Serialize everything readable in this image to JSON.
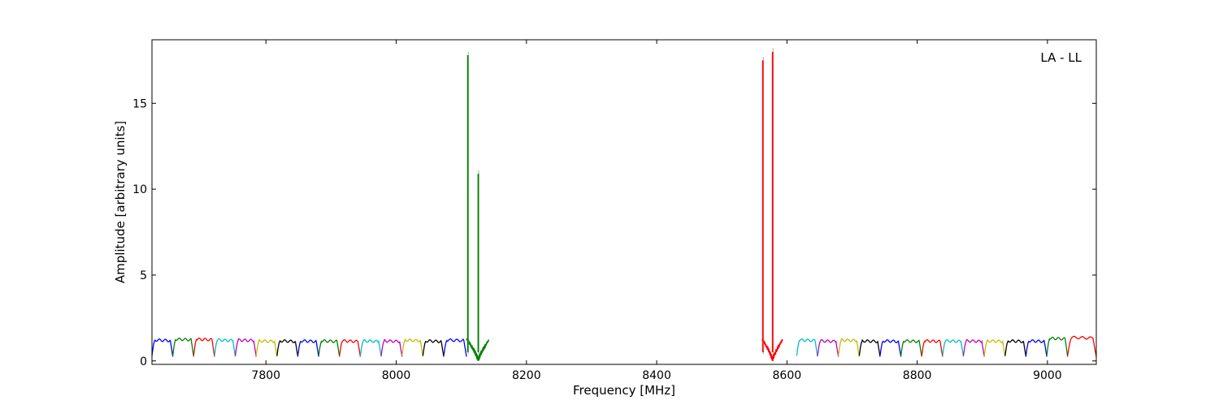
{
  "chart_data": {
    "type": "line",
    "title": "",
    "annotation": "LA - LL",
    "xlabel": "Frequency [MHz]",
    "ylabel": "Amplitude [arbitrary units]",
    "xlim": [
      7625,
      9075
    ],
    "ylim": [
      -0.2,
      18.7
    ],
    "x_ticks": [
      7800,
      8000,
      8200,
      8400,
      8600,
      8800,
      9000
    ],
    "y_ticks": [
      0,
      5,
      10,
      15
    ],
    "grid": false,
    "legend": "none",
    "colors": [
      "#0000ff",
      "#008000",
      "#ff0000",
      "#00bfbf",
      "#bf00bf",
      "#bfbf00",
      "#000000"
    ],
    "subbands": [
      {
        "start": 7625,
        "end": 7657,
        "color": "#0000ff",
        "level": 1.2
      },
      {
        "start": 7657,
        "end": 7689,
        "color": "#008000",
        "level": 1.25
      },
      {
        "start": 7689,
        "end": 7721,
        "color": "#ff0000",
        "level": 1.25
      },
      {
        "start": 7721,
        "end": 7753,
        "color": "#00bfbf",
        "level": 1.2
      },
      {
        "start": 7753,
        "end": 7785,
        "color": "#bf00bf",
        "level": 1.2
      },
      {
        "start": 7785,
        "end": 7817,
        "color": "#bfbf00",
        "level": 1.15
      },
      {
        "start": 7817,
        "end": 7849,
        "color": "#000000",
        "level": 1.15
      },
      {
        "start": 7849,
        "end": 7881,
        "color": "#0000ff",
        "level": 1.15
      },
      {
        "start": 7881,
        "end": 7913,
        "color": "#008000",
        "level": 1.15
      },
      {
        "start": 7913,
        "end": 7945,
        "color": "#ff0000",
        "level": 1.15
      },
      {
        "start": 7945,
        "end": 7977,
        "color": "#00bfbf",
        "level": 1.15
      },
      {
        "start": 7977,
        "end": 8009,
        "color": "#bf00bf",
        "level": 1.15
      },
      {
        "start": 8009,
        "end": 8041,
        "color": "#bfbf00",
        "level": 1.2
      },
      {
        "start": 8041,
        "end": 8073,
        "color": "#000000",
        "level": 1.15
      },
      {
        "start": 8073,
        "end": 8108,
        "color": "#0000ff",
        "level": 1.2
      },
      {
        "start": 8615,
        "end": 8647,
        "color": "#00bfbf",
        "level": 1.2
      },
      {
        "start": 8647,
        "end": 8679,
        "color": "#bf00bf",
        "level": 1.15
      },
      {
        "start": 8679,
        "end": 8711,
        "color": "#bfbf00",
        "level": 1.2
      },
      {
        "start": 8711,
        "end": 8743,
        "color": "#000000",
        "level": 1.15
      },
      {
        "start": 8743,
        "end": 8775,
        "color": "#0000ff",
        "level": 1.15
      },
      {
        "start": 8775,
        "end": 8807,
        "color": "#008000",
        "level": 1.15
      },
      {
        "start": 8807,
        "end": 8839,
        "color": "#ff0000",
        "level": 1.15
      },
      {
        "start": 8839,
        "end": 8871,
        "color": "#00bfbf",
        "level": 1.15
      },
      {
        "start": 8871,
        "end": 8903,
        "color": "#bf00bf",
        "level": 1.15
      },
      {
        "start": 8903,
        "end": 8935,
        "color": "#bfbf00",
        "level": 1.15
      },
      {
        "start": 8935,
        "end": 8967,
        "color": "#000000",
        "level": 1.15
      },
      {
        "start": 8967,
        "end": 8999,
        "color": "#0000ff",
        "level": 1.15
      },
      {
        "start": 8999,
        "end": 9031,
        "color": "#008000",
        "level": 1.3
      },
      {
        "start": 9031,
        "end": 9075,
        "color": "#ff0000",
        "level": 1.35
      }
    ],
    "feature_bands": [
      {
        "start": 8108,
        "end": 8142,
        "color": "#008000",
        "level": 1.2,
        "dip": 8126
      },
      {
        "start": 8562,
        "end": 8593,
        "color": "#ff0000",
        "level": 1.2,
        "dip": 8578
      }
    ],
    "peaks": [
      {
        "x": 8110,
        "y": 17.8,
        "color": "#008000"
      },
      {
        "x": 8126,
        "y": 10.9,
        "color": "#008000"
      },
      {
        "x": 8563,
        "y": 17.5,
        "color": "#ff0000"
      },
      {
        "x": 8578,
        "y": 18.0,
        "color": "#ff0000"
      }
    ]
  }
}
